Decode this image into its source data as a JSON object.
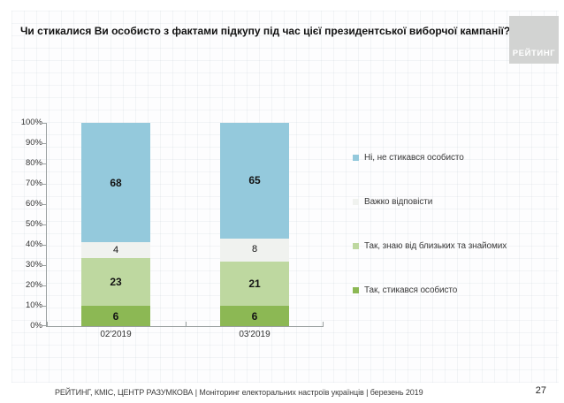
{
  "title": "Чи стикалися Ви особисто з фактами підкупу під час цієї президентської виборчої кампанії?",
  "logo_text": "РЕЙТИНГ",
  "logo_bg_color": "#d2d3d2",
  "footer": {
    "source": "РЕЙТИНГ, КМІС, ЦЕНТР РАЗУМКОВА  | Моніторинг електоральних настроїв українців | березень 2019",
    "page_number": "27"
  },
  "chart_data": {
    "type": "bar",
    "stacked": true,
    "categories": [
      "02'2019",
      "03'2019"
    ],
    "series": [
      {
        "name": "Так, стикався особисто",
        "color": "#8cb854",
        "values": [
          6,
          6
        ],
        "bold_labels": true
      },
      {
        "name": "Так, знаю від близьких та знайомих",
        "color": "#bed8a0",
        "values": [
          23,
          21
        ],
        "bold_labels": true
      },
      {
        "name": "Важко відповісти",
        "color": "#f0f2ef",
        "values": [
          4,
          8
        ],
        "bold_labels": false
      },
      {
        "name": "Ні, не стикався особисто",
        "color": "#94c9dc",
        "values": [
          68,
          65
        ],
        "bold_labels": true
      }
    ],
    "y_ticks": [
      "0%",
      "10%",
      "20%",
      "30%",
      "40%",
      "50%",
      "60%",
      "70%",
      "80%",
      "90%",
      "100%"
    ],
    "ylim": [
      0,
      100
    ],
    "grid": false,
    "legend_position": "right",
    "legend_order_top_to_bottom": [
      "Ні, не стикався особисто",
      "Важко відповісти",
      "Так, знаю від близьких та знайомих",
      "Так, стикався особисто"
    ]
  }
}
